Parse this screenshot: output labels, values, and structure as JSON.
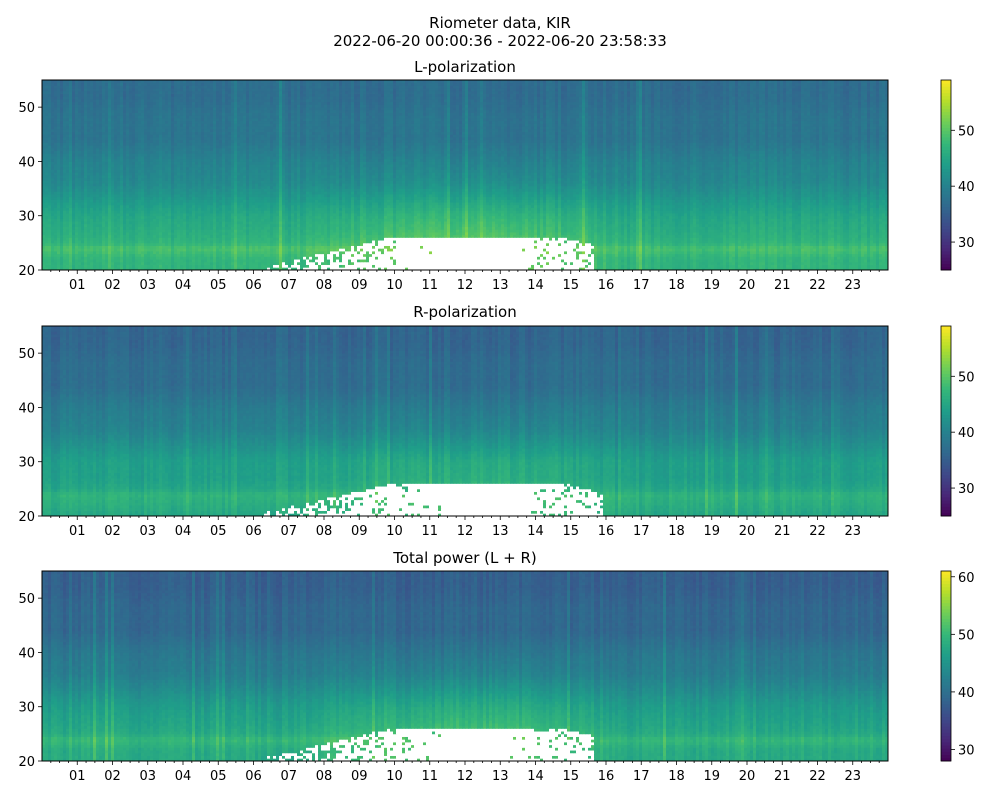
{
  "figure": {
    "title_line1": "Riometer data, KIR",
    "title_line2": "2022-06-20 00:00:36 - 2022-06-20 23:58:33"
  },
  "colormap": {
    "name": "viridis",
    "stops": [
      "#440154",
      "#482878",
      "#3e4989",
      "#31688e",
      "#26828e",
      "#1f9e89",
      "#35b779",
      "#6ece58",
      "#b5de2b",
      "#fde725"
    ]
  },
  "missing_color": "#ffffff",
  "chart_data": [
    {
      "type": "heatmap",
      "title": "L-polarization",
      "xlabel": "",
      "ylabel": "",
      "x_unit": "hour of day",
      "xlim": [
        0,
        24
      ],
      "xticks": [
        "01",
        "02",
        "03",
        "04",
        "05",
        "06",
        "07",
        "08",
        "09",
        "10",
        "11",
        "12",
        "13",
        "14",
        "15",
        "16",
        "17",
        "18",
        "19",
        "20",
        "21",
        "22",
        "23"
      ],
      "ylim": [
        20,
        55
      ],
      "yticks": [
        20,
        30,
        40,
        50
      ],
      "colorbar": {
        "range": [
          25,
          59
        ],
        "ticks": [
          30,
          40,
          50
        ]
      },
      "value_profile": [
        {
          "y": 20,
          "value": 47
        },
        {
          "y": 22,
          "value": 47
        },
        {
          "y": 24,
          "value": 49
        },
        {
          "y": 25,
          "value": 47
        },
        {
          "y": 27,
          "value": 46
        },
        {
          "y": 30,
          "value": 45
        },
        {
          "y": 33,
          "value": 43
        },
        {
          "y": 36,
          "value": 41
        },
        {
          "y": 40,
          "value": 40
        },
        {
          "y": 44,
          "value": 38
        },
        {
          "y": 48,
          "value": 38
        },
        {
          "y": 52,
          "value": 37
        },
        {
          "y": 55,
          "value": 37
        }
      ],
      "daytime_enhancement": {
        "start_hour": 7,
        "peak_hour": 12.5,
        "end_hour": 16.5,
        "max_increase": 5
      },
      "missing_region": {
        "start_hour": 5.9,
        "end_hour": 15.7,
        "y_min": 20,
        "y_max": 26
      }
    },
    {
      "type": "heatmap",
      "title": "R-polarization",
      "xlabel": "",
      "ylabel": "",
      "x_unit": "hour of day",
      "xlim": [
        0,
        24
      ],
      "xticks": [
        "01",
        "02",
        "03",
        "04",
        "05",
        "06",
        "07",
        "08",
        "09",
        "10",
        "11",
        "12",
        "13",
        "14",
        "15",
        "16",
        "17",
        "18",
        "19",
        "20",
        "21",
        "22",
        "23"
      ],
      "ylim": [
        20,
        55
      ],
      "yticks": [
        20,
        30,
        40,
        50
      ],
      "colorbar": {
        "range": [
          25,
          59
        ],
        "ticks": [
          30,
          40,
          50
        ]
      },
      "value_profile": [
        {
          "y": 20,
          "value": 45
        },
        {
          "y": 22,
          "value": 46
        },
        {
          "y": 24,
          "value": 47
        },
        {
          "y": 25,
          "value": 45
        },
        {
          "y": 27,
          "value": 44
        },
        {
          "y": 30,
          "value": 44
        },
        {
          "y": 33,
          "value": 42
        },
        {
          "y": 36,
          "value": 40
        },
        {
          "y": 40,
          "value": 39
        },
        {
          "y": 44,
          "value": 37
        },
        {
          "y": 48,
          "value": 37
        },
        {
          "y": 52,
          "value": 36
        },
        {
          "y": 55,
          "value": 36
        }
      ],
      "daytime_enhancement": {
        "start_hour": 7,
        "peak_hour": 12.5,
        "end_hour": 16.5,
        "max_increase": 3.5
      },
      "missing_region": {
        "start_hour": 5.9,
        "end_hour": 15.9,
        "y_min": 20,
        "y_max": 26
      }
    },
    {
      "type": "heatmap",
      "title": "Total power (L + R)",
      "xlabel": "",
      "ylabel": "",
      "x_unit": "hour of day",
      "xlim": [
        0,
        24
      ],
      "xticks": [
        "01",
        "02",
        "03",
        "04",
        "05",
        "06",
        "07",
        "08",
        "09",
        "10",
        "11",
        "12",
        "13",
        "14",
        "15",
        "16",
        "17",
        "18",
        "19",
        "20",
        "21",
        "22",
        "23"
      ],
      "ylim": [
        20,
        55
      ],
      "yticks": [
        20,
        30,
        40,
        50
      ],
      "colorbar": {
        "range": [
          28,
          61
        ],
        "ticks": [
          30,
          40,
          50,
          60
        ]
      },
      "value_profile": [
        {
          "y": 20,
          "value": 48
        },
        {
          "y": 22,
          "value": 48
        },
        {
          "y": 24,
          "value": 50
        },
        {
          "y": 25,
          "value": 48
        },
        {
          "y": 27,
          "value": 47
        },
        {
          "y": 30,
          "value": 46
        },
        {
          "y": 33,
          "value": 44
        },
        {
          "y": 36,
          "value": 42
        },
        {
          "y": 40,
          "value": 41
        },
        {
          "y": 44,
          "value": 39
        },
        {
          "y": 48,
          "value": 39
        },
        {
          "y": 52,
          "value": 38
        },
        {
          "y": 55,
          "value": 38
        }
      ],
      "daytime_enhancement": {
        "start_hour": 7,
        "peak_hour": 12.5,
        "end_hour": 16.5,
        "max_increase": 4.5
      },
      "missing_region": {
        "start_hour": 5.9,
        "end_hour": 15.7,
        "y_min": 20,
        "y_max": 26
      }
    }
  ]
}
